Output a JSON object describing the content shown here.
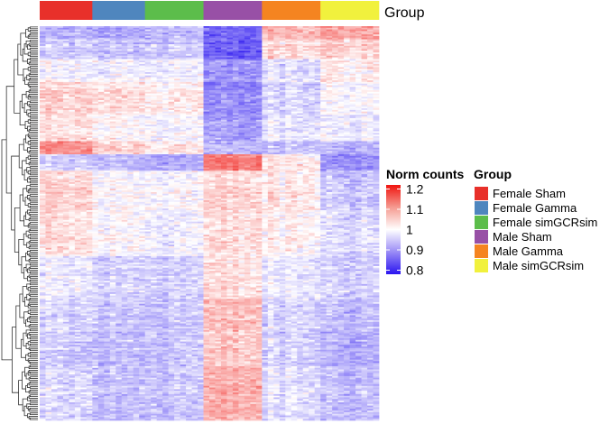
{
  "chart_data": {
    "type": "heatmap",
    "title": "",
    "n_columns": 58,
    "n_rows": 240,
    "value_range": [
      0.75,
      1.22
    ],
    "column_groups": [
      {
        "name": "Female Sham",
        "color": "#E8302A",
        "count": 9
      },
      {
        "name": "Female Gamma",
        "color": "#4F86BE",
        "count": 9
      },
      {
        "name": "Female simGCRsim",
        "color": "#5CBD4B",
        "count": 10
      },
      {
        "name": "Male Sham",
        "color": "#9850A6",
        "count": 10
      },
      {
        "name": "Male Gamma",
        "color": "#F58420",
        "count": 10
      },
      {
        "name": "Male simGCRsim",
        "color": "#F1F13D",
        "count": 10
      }
    ],
    "annotation_label": "Group",
    "colorbar": {
      "title": "Norm counts",
      "ticks": [
        0.8,
        0.9,
        1,
        1.1,
        1.2
      ],
      "tick_labels": [
        "0.8",
        "0.9",
        "1",
        "1.1",
        "1.2"
      ],
      "range": [
        0.78,
        1.22
      ],
      "colors": {
        "low": "#2A14F0",
        "mid": "#FFFFFF",
        "high": "#F0140F"
      }
    },
    "legend": {
      "title": "Group",
      "position": "right"
    },
    "row_dendrogram": true,
    "column_dendrogram": false,
    "block_pattern_note": "Cluster means per row block and sample group; cell values vary randomly around these means.",
    "row_blocks": [
      {
        "rows": 8,
        "group_means": [
          0.93,
          0.92,
          0.94,
          0.86,
          1.07,
          1.09
        ]
      },
      {
        "rows": 12,
        "group_means": [
          0.95,
          0.94,
          0.95,
          0.84,
          1.03,
          1.04
        ]
      },
      {
        "rows": 14,
        "group_means": [
          0.99,
          0.99,
          0.99,
          0.9,
          0.97,
          1.02
        ]
      },
      {
        "rows": 20,
        "group_means": [
          1.04,
          1.03,
          1.02,
          0.89,
          0.96,
          1.0
        ]
      },
      {
        "rows": 16,
        "group_means": [
          1.03,
          1.01,
          1.0,
          0.91,
          0.98,
          0.99
        ]
      },
      {
        "rows": 8,
        "group_means": [
          1.1,
          1.04,
          1.02,
          0.93,
          0.94,
          0.93
        ]
      },
      {
        "rows": 10,
        "group_means": [
          0.95,
          0.93,
          0.92,
          1.12,
          1.02,
          0.9
        ]
      },
      {
        "rows": 24,
        "group_means": [
          1.04,
          1.0,
          1.0,
          1.04,
          1.02,
          0.95
        ]
      },
      {
        "rows": 28,
        "group_means": [
          1.03,
          1.0,
          0.99,
          1.03,
          1.01,
          0.97
        ]
      },
      {
        "rows": 26,
        "group_means": [
          0.98,
          0.96,
          0.96,
          1.03,
          0.98,
          0.96
        ]
      },
      {
        "rows": 20,
        "group_means": [
          0.96,
          0.95,
          0.95,
          1.06,
          0.96,
          0.94
        ]
      },
      {
        "rows": 22,
        "group_means": [
          0.95,
          0.94,
          0.95,
          1.05,
          0.96,
          0.93
        ]
      },
      {
        "rows": 32,
        "group_means": [
          0.96,
          0.94,
          0.95,
          1.07,
          0.97,
          0.94
        ]
      }
    ]
  }
}
